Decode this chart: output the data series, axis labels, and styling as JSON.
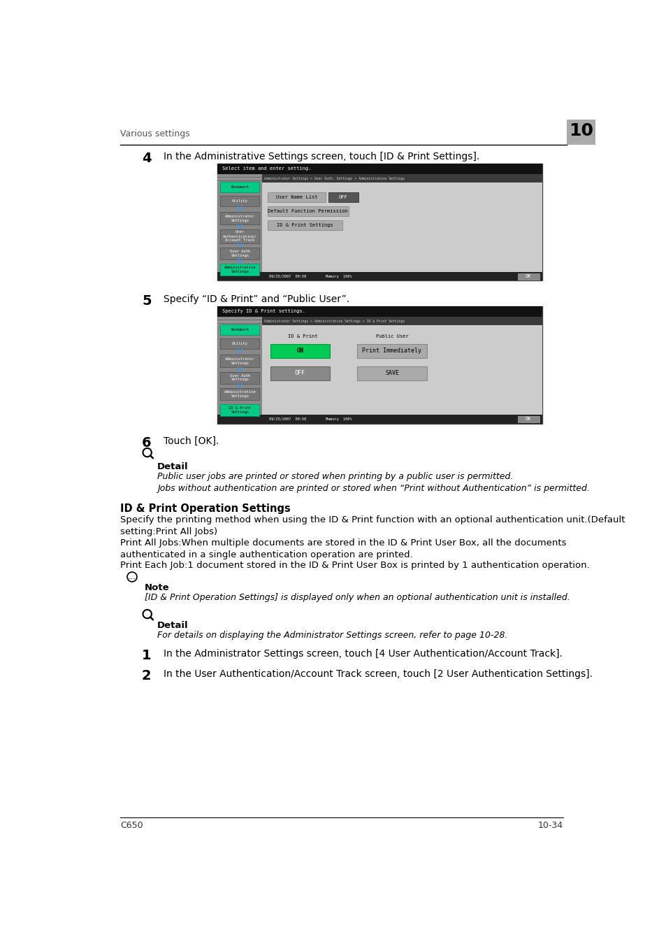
{
  "page_bg": "#ffffff",
  "header_text": "Various settings",
  "header_num": "10",
  "footer_left": "C650",
  "footer_right": "10-34",
  "step4_num": "4",
  "step4_text": "In the Administrative Settings screen, touch [ID & Print Settings].",
  "step5_num": "5",
  "step5_text": "Specify “ID & Print” and “Public User”.",
  "step6_num": "6",
  "step6_text": "Touch [OK].",
  "detail_label1": "Detail",
  "detail_italic1a": "Public user jobs are printed or stored when printing by a public user is permitted.",
  "detail_italic1b": "Jobs without authentication are printed or stored when “Print without Authentication” is permitted.",
  "section_title": "ID & Print Operation Settings",
  "section_body1": "Specify the printing method when using the ID & Print function with an optional authentication unit.(Default\nsetting:Print All Jobs)",
  "section_body2": "Print All Jobs:When multiple documents are stored in the ID & Print User Box, all the documents\nauthenticated in a single authentication operation are printed.",
  "section_body3": "Print Each Job:1 document stored in the ID & Print User Box is printed by 1 authentication operation.",
  "note_label": "Note",
  "note_italic": "[ID & Print Operation Settings] is displayed only when an optional authentication unit is installed.",
  "detail_label2": "Detail",
  "detail_italic2": "For details on displaying the Administrator Settings screen, refer to page 10-28.",
  "step1_num": "1",
  "step1_text": "In the Administrator Settings screen, touch [4 User Authentication/Account Track].",
  "step2_num": "2",
  "step2_text": "In the User Authentication/Account Track screen, touch [2 User Authentication Settings].",
  "screen1_topbar_text": "Select item and enter setting.",
  "screen1_breadcrumb": "Administrator Settings > User Auth. Settings > Administrative Settings",
  "screen1_item1": "User Name List",
  "screen1_item1_val": "OFF",
  "screen1_item2": "Default Function Permission",
  "screen1_item3": "ID & Print Settings",
  "screen2_topbar_text": "Specify ID & Print settings.",
  "screen2_breadcrumb": "Administrator Settings > Administrative Settings > ID & Print Settings",
  "screen2_col1": "ID & Print",
  "screen2_col2": "Public User",
  "screen2_btn_on": "ON",
  "screen2_btn_off": "OFF",
  "screen2_btn_print_immed": "Print Immediately",
  "screen2_btn_save": "SAVE"
}
